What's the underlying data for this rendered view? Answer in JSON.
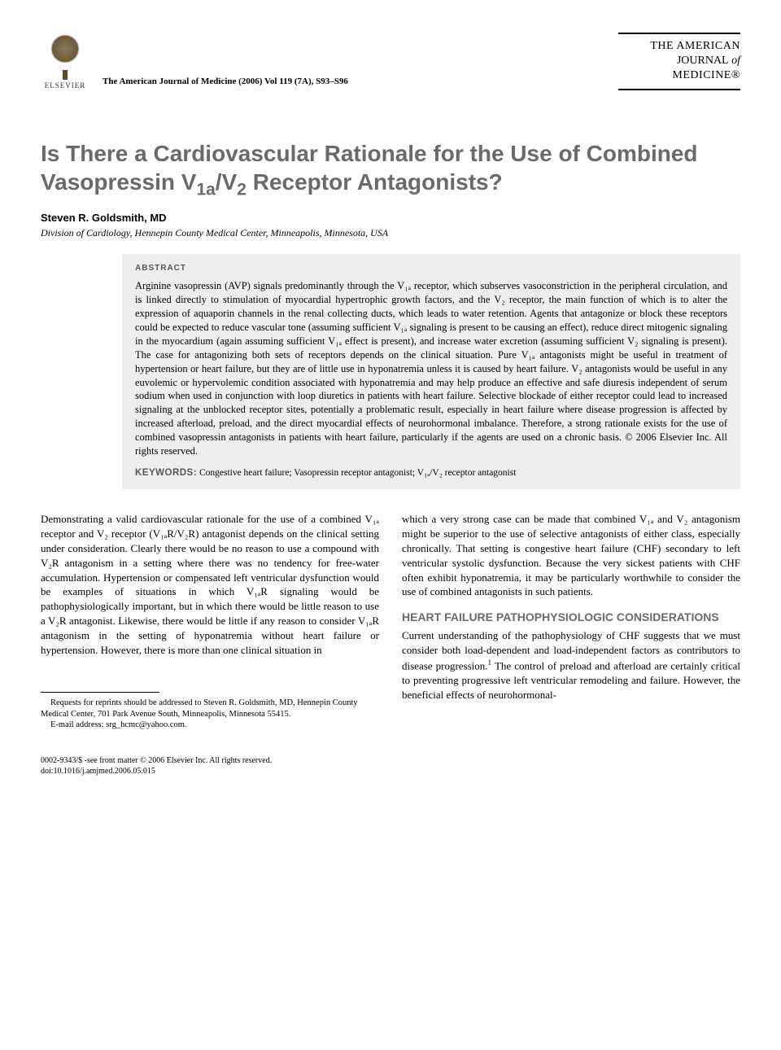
{
  "header": {
    "citation": "The American Journal of Medicine (2006) Vol 119 (7A), S93–S96",
    "publisher_name": "ELSEVIER",
    "journal_brand_l1": "THE AMERICAN",
    "journal_brand_l2_a": "JOURNAL",
    "journal_brand_l2_b": " of",
    "journal_brand_l3": "MEDICINE",
    "reg_mark": "®"
  },
  "title_parts": {
    "p1": "Is There a Cardiovascular Rationale for the Use of Combined Vasopressin V",
    "sub1": "1a",
    "p2": "/V",
    "sub2": "2",
    "p3": " Receptor Antagonists?"
  },
  "author": "Steven R. Goldsmith, MD",
  "affiliation": "Division of Cardiology, Hennepin County Medical Center, Minneapolis, Minnesota, USA",
  "abstract": {
    "label": "ABSTRACT",
    "text": "Arginine vasopressin (AVP) signals predominantly through the V₁ₐ receptor, which subserves vasoconstriction in the peripheral circulation, and is linked directly to stimulation of myocardial hypertrophic growth factors, and the V₂ receptor, the main function of which is to alter the expression of aquaporin channels in the renal collecting ducts, which leads to water retention. Agents that antagonize or block these receptors could be expected to reduce vascular tone (assuming sufficient V₁ₐ signaling is present to be causing an effect), reduce direct mitogenic signaling in the myocardium (again assuming sufficient V₁ₐ effect is present), and increase water excretion (assuming sufficient V₂ signaling is present). The case for antagonizing both sets of receptors depends on the clinical situation. Pure V₁ₐ antagonists might be useful in treatment of hypertension or heart failure, but they are of little use in hyponatremia unless it is caused by heart failure. V₂ antagonists would be useful in any euvolemic or hypervolemic condition associated with hyponatremia and may help produce an effective and safe diuresis independent of serum sodium when used in conjunction with loop diuretics in patients with heart failure. Selective blockade of either receptor could lead to increased signaling at the unblocked receptor sites, potentially a problematic result, especially in heart failure where disease progression is affected by increased afterload, preload, and the direct myocardial effects of neurohormonal imbalance. Therefore, a strong rationale exists for the use of combined vasopressin antagonists in patients with heart failure, particularly if the agents are used on a chronic basis. © 2006 Elsevier Inc. All rights reserved.",
    "keywords_label": "KEYWORDS:",
    "keywords": "Congestive heart failure; Vasopressin receptor antagonist; V₁ₐ/V₂ receptor antagonist"
  },
  "body": {
    "col1_p1": "Demonstrating a valid cardiovascular rationale for the use of a combined V₁ₐ receptor and V₂ receptor (V₁ₐR/V₂R) antagonist depends on the clinical setting under consideration. Clearly there would be no reason to use a compound with V₂R antagonism in a setting where there was no tendency for free-water accumulation. Hypertension or compensated left ventricular dysfunction would be examples of situations in which V₁ₐR signaling would be pathophysiologically important, but in which there would be little reason to use a V₂R antagonist. Likewise, there would be little if any reason to consider V₁ₐR antagonism in the setting of hyponatremia without heart failure or hypertension. However, there is more than one clinical situation in",
    "col2_p1": "which a very strong case can be made that combined V₁ₐ and V₂ antagonism might be superior to the use of selective antagonists of either class, especially chronically. That setting is congestive heart failure (CHF) secondary to left ventricular systolic dysfunction. Because the very sickest patients with CHF often exhibit hyponatremia, it may be particularly worthwhile to consider the use of combined antagonists in such patients.",
    "section1_heading": "HEART FAILURE PATHOPHYSIOLOGIC CONSIDERATIONS",
    "col2_p2a": "Current understanding of the pathophysiology of CHF suggests that we must consider both load-dependent and load-independent factors as contributors to disease progression.",
    "ref1": "1",
    "col2_p2b": " The control of preload and afterload are certainly critical to preventing progressive left ventricular remodeling and failure. However, the beneficial effects of neurohormonal-"
  },
  "footnotes": {
    "reprint": "Requests for reprints should be addressed to Steven R. Goldsmith, MD, Hennepin County Medical Center, 701 Park Avenue South, Minneapolis, Minnesota 55415.",
    "email_label": "E-mail address: ",
    "email": "srg_hcmc@yahoo.com."
  },
  "footer": {
    "line1": "0002-9343/$ -see front matter © 2006 Elsevier Inc. All rights reserved.",
    "line2": "doi:10.1016/j.amjmed.2006.05.015"
  },
  "colors": {
    "heading_gray": "#6a6a6a",
    "abstract_bg": "#eeeeee",
    "text": "#000000",
    "background": "#ffffff"
  },
  "typography": {
    "title_fontsize": 28,
    "body_fontsize": 13,
    "abstract_fontsize": 12.5,
    "footnote_fontsize": 10.5
  }
}
